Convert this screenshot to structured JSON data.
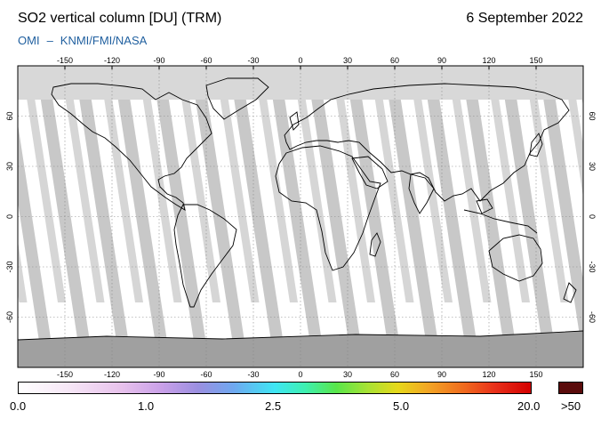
{
  "header": {
    "title": "SO2 vertical column [DU] (TRM)",
    "date": "6 September 2022",
    "credit_left": "OMI",
    "credit_sep": "–",
    "credit_right": "KNMI/FMI/NASA"
  },
  "map": {
    "lon_ticks": [
      "-150",
      "-120",
      "-90",
      "-60",
      "-30",
      "0",
      "30",
      "60",
      "90",
      "120",
      "150"
    ],
    "lat_ticks": [
      "60",
      "30",
      "0",
      "-30",
      "-60"
    ],
    "colors": {
      "swath": "#ffffff",
      "gap": "#c8c8c8",
      "no_data": "#a0a0a0",
      "coast": "#000000"
    }
  },
  "colorbar": {
    "labels": [
      "0.0",
      "1.0",
      "2.5",
      "5.0",
      "20.0"
    ],
    "over_label": ">50",
    "over_color": "#5a0b0b"
  }
}
